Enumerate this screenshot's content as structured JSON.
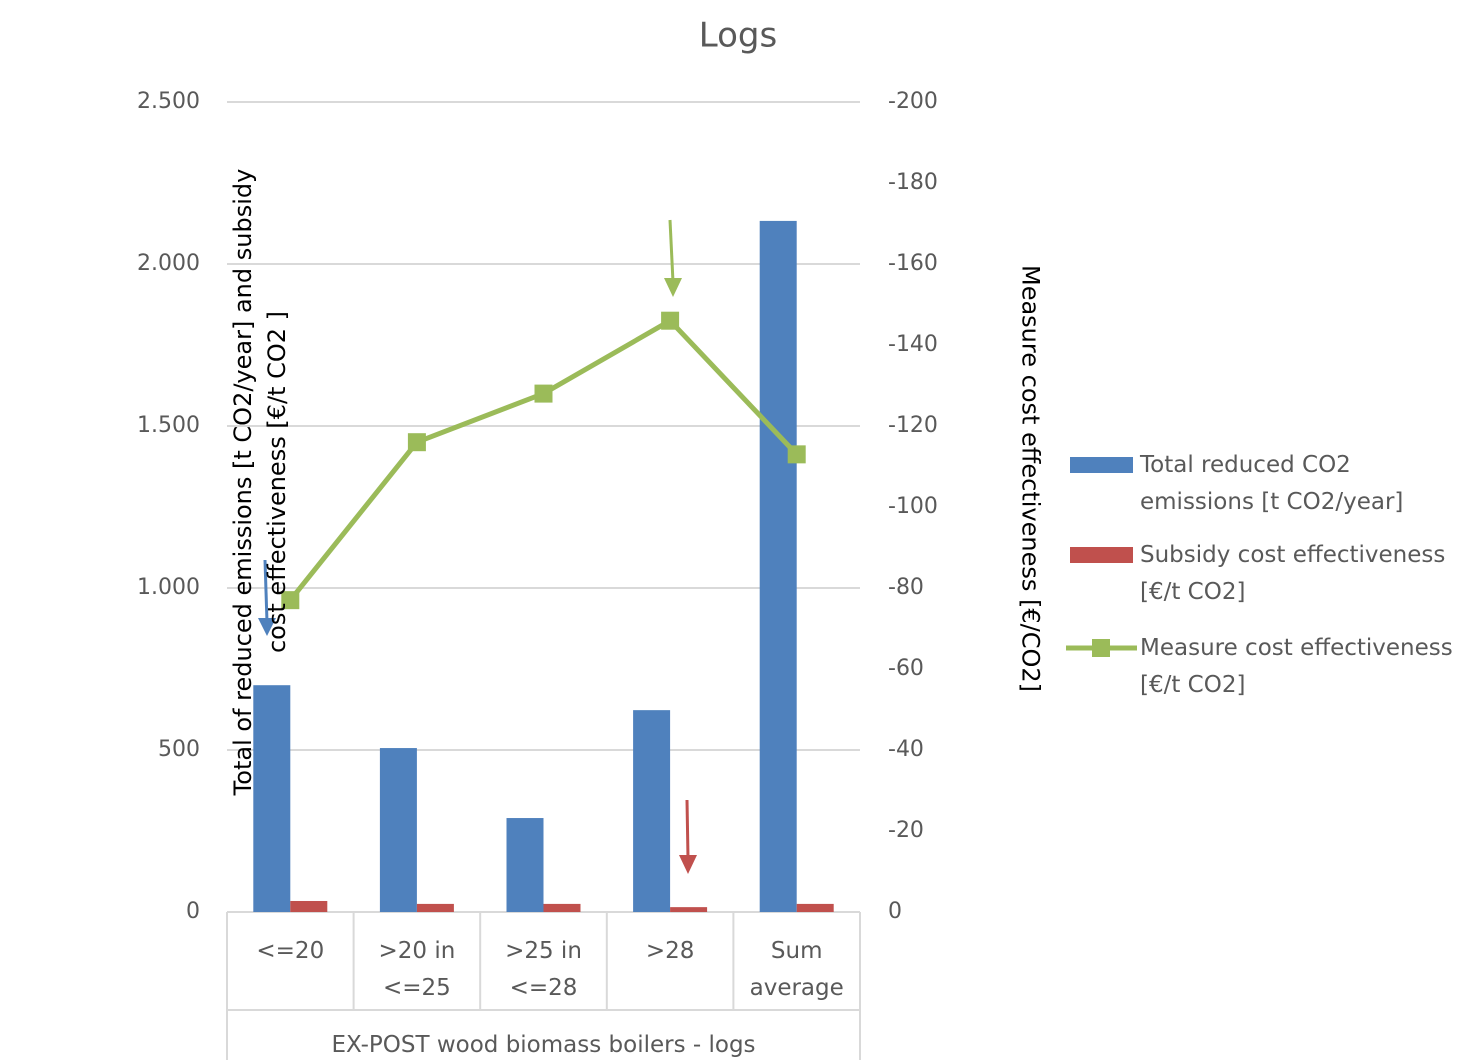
{
  "chart_data": {
    "type": "bar",
    "title": "Logs",
    "categories": [
      "<=20",
      ">20 in <=25",
      ">25 in <=28",
      ">28",
      "Sum average"
    ],
    "x_group_label": "EX-POST wood biomass boilers - logs",
    "ylabel": "Total of reduced emissions [t CO2/year] and subsidy cost effectiveness [€/t CO2 ]",
    "y2label": "Measure cost effectiveness [€/CO2]",
    "series": [
      {
        "name": "Total reduced CO2 emissions [t CO2/year]",
        "color": "#4f81bd",
        "type": "bar",
        "values": [
          700,
          506,
          290,
          623,
          2133
        ]
      },
      {
        "name": "Subsidy cost effectiveness [€/t CO2]",
        "color": "#c0504d",
        "type": "bar",
        "values": [
          34,
          25,
          25,
          15,
          25
        ]
      },
      {
        "name": "Measure cost effectiveness [€/t CO2]",
        "color": "#9bbb59",
        "type": "line",
        "axis": "y2",
        "values": [
          -77,
          -116,
          -128,
          -146,
          -113
        ]
      }
    ],
    "ylim": [
      0,
      2500
    ],
    "yticks": [
      0,
      500,
      {
        "value": 1000,
        "label": "1.000"
      },
      {
        "value": 1500,
        "label": "1.500"
      },
      {
        "value": 2000,
        "label": "2.000"
      },
      {
        "value": 2500,
        "label": "2.500"
      }
    ],
    "y2lim": [
      0,
      -200
    ],
    "y2ticks": [
      0,
      -20,
      -40,
      -60,
      -80,
      -100,
      -120,
      -140,
      -160,
      -180,
      -200
    ],
    "grid": true,
    "legend": "right"
  }
}
